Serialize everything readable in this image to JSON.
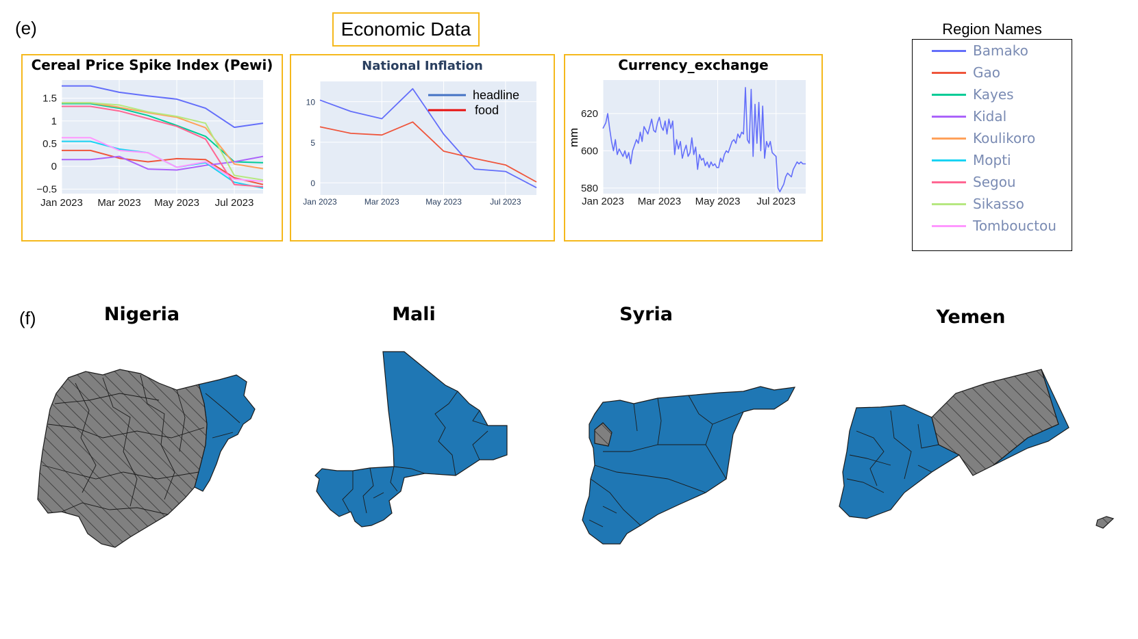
{
  "labels": {
    "e": "(e)",
    "f": "(f)"
  },
  "economic_title": "Economic Data",
  "colors": {
    "box_border": "#f5b81c",
    "plot_bg": "#e5ecf6",
    "map_blue": "#1f77b4",
    "map_grey": "#808080"
  },
  "chart_data": [
    {
      "type": "line",
      "title": "Cereal Price Spike Index (Pewi)",
      "xlabel": "",
      "ylabel": "",
      "x": [
        "2023-01",
        "2023-02",
        "2023-03",
        "2023-04",
        "2023-05",
        "2023-06",
        "2023-07",
        "2023-08"
      ],
      "x_ticks": [
        "Jan 2023",
        "Mar 2023",
        "May 2023",
        "Jul 2023"
      ],
      "y_ticks": [
        "−0.5",
        "0",
        "0.5",
        "1",
        "1.5"
      ],
      "ylim": [
        -0.6,
        1.9
      ],
      "series": [
        {
          "name": "Bamako",
          "color": "#636efa",
          "values": [
            1.77,
            1.77,
            1.63,
            1.55,
            1.48,
            1.28,
            0.86,
            0.95
          ]
        },
        {
          "name": "Gao",
          "color": "#ef553b",
          "values": [
            0.35,
            0.35,
            0.18,
            0.1,
            0.17,
            0.15,
            -0.25,
            -0.4
          ]
        },
        {
          "name": "Kayes",
          "color": "#00cc96",
          "values": [
            1.38,
            1.38,
            1.28,
            1.12,
            0.9,
            0.66,
            0.1,
            0.08
          ]
        },
        {
          "name": "Kidal",
          "color": "#ab63fa",
          "values": [
            0.15,
            0.15,
            0.22,
            -0.06,
            -0.08,
            0.02,
            0.1,
            0.22
          ]
        },
        {
          "name": "Koulikoro",
          "color": "#ffa15a",
          "values": [
            1.4,
            1.4,
            1.3,
            1.18,
            1.08,
            0.85,
            0.05,
            -0.05
          ]
        },
        {
          "name": "Mopti",
          "color": "#19d3f3",
          "values": [
            0.55,
            0.55,
            0.38,
            0.3,
            -0.02,
            0.08,
            -0.35,
            -0.48
          ]
        },
        {
          "name": "Segou",
          "color": "#ff6692",
          "values": [
            1.32,
            1.32,
            1.22,
            1.05,
            0.88,
            0.6,
            -0.4,
            -0.45
          ]
        },
        {
          "name": "Sikasso",
          "color": "#b6e880",
          "values": [
            1.4,
            1.4,
            1.35,
            1.2,
            1.1,
            0.95,
            -0.2,
            -0.3
          ]
        },
        {
          "name": "Tombouctou",
          "color": "#ff97ff",
          "values": [
            0.63,
            0.63,
            0.35,
            0.3,
            -0.02,
            0.1,
            -0.28,
            -0.33
          ]
        }
      ]
    },
    {
      "type": "line",
      "title": "National Inflation",
      "xlabel": "",
      "ylabel": "",
      "x": [
        "2023-01",
        "2023-02",
        "2023-03",
        "2023-04",
        "2023-05",
        "2023-06",
        "2023-07",
        "2023-08"
      ],
      "x_ticks": [
        "Jan 2023",
        "Mar 2023",
        "May 2023",
        "Jul 2023"
      ],
      "y_ticks": [
        "0",
        "5",
        "10"
      ],
      "ylim": [
        -1.5,
        12.5
      ],
      "legend_position": "top-right",
      "series": [
        {
          "name": "headline",
          "color": "#636efa",
          "values": [
            10.2,
            8.8,
            7.9,
            11.6,
            6.0,
            1.7,
            1.4,
            -0.6
          ]
        },
        {
          "name": "food",
          "color": "#ef553b",
          "values": [
            6.9,
            6.1,
            5.9,
            7.5,
            3.9,
            3.0,
            2.2,
            0.1
          ]
        }
      ],
      "legend_colors": {
        "headline": "#4472c4",
        "food": "#e8110f"
      }
    },
    {
      "type": "line",
      "title": "Currency_exchange",
      "xlabel": "",
      "ylabel": "mm",
      "x_ticks": [
        "Jan 2023",
        "Mar 2023",
        "May 2023",
        "Jul 2023"
      ],
      "y_ticks": [
        "580",
        "600",
        "620"
      ],
      "ylim": [
        577,
        638
      ],
      "x_range_days": [
        0,
        212
      ],
      "series": [
        {
          "name": "",
          "color": "#636efa",
          "x_days": [
            0,
            3,
            5,
            7,
            9,
            11,
            13,
            15,
            17,
            19,
            21,
            23,
            25,
            27,
            29,
            31,
            33,
            35,
            37,
            39,
            41,
            43,
            45,
            47,
            49,
            51,
            53,
            55,
            57,
            59,
            61,
            63,
            65,
            67,
            69,
            71,
            73,
            75,
            77,
            79,
            81,
            83,
            85,
            87,
            89,
            91,
            93,
            95,
            97,
            99,
            101,
            103,
            105,
            107,
            109,
            111,
            113,
            115,
            117,
            119,
            121,
            123,
            125,
            127,
            129,
            131,
            133,
            135,
            137,
            139,
            141,
            143,
            145,
            147,
            149,
            151,
            153,
            155,
            157,
            159,
            161,
            163,
            165,
            167,
            169,
            171,
            173,
            175,
            177,
            179,
            181,
            183,
            185,
            187,
            189,
            191,
            193,
            195,
            197,
            199,
            201,
            203,
            205,
            207,
            209,
            211,
            212
          ],
          "values": [
            612,
            615,
            620,
            612,
            605,
            600,
            606,
            598,
            601,
            599,
            597,
            600,
            596,
            599,
            593,
            600,
            603,
            606,
            604,
            610,
            605,
            613,
            611,
            609,
            613,
            617,
            611,
            610,
            615,
            618,
            613,
            611,
            616,
            609,
            617,
            612,
            616,
            598,
            606,
            601,
            605,
            596,
            600,
            603,
            597,
            599,
            607,
            598,
            602,
            590,
            598,
            595,
            596,
            592,
            594,
            591,
            594,
            592,
            593,
            591,
            591,
            596,
            594,
            598,
            600,
            599,
            602,
            605,
            606,
            604,
            609,
            607,
            610,
            609,
            634,
            606,
            604,
            633,
            597,
            625,
            604,
            626,
            600,
            624,
            596,
            605,
            602,
            605,
            599,
            598,
            597,
            580,
            578,
            580,
            582,
            586,
            588,
            587,
            586,
            590,
            592,
            594,
            593,
            594,
            593,
            593,
            593
          ]
        }
      ]
    }
  ],
  "legend": {
    "title": "Region Names",
    "items": [
      {
        "name": "Bamako",
        "color": "#636efa"
      },
      {
        "name": "Gao",
        "color": "#ef553b"
      },
      {
        "name": "Kayes",
        "color": "#00cc96"
      },
      {
        "name": "Kidal",
        "color": "#ab63fa"
      },
      {
        "name": "Koulikoro",
        "color": "#ffa15a"
      },
      {
        "name": "Mopti",
        "color": "#19d3f3"
      },
      {
        "name": "Segou",
        "color": "#ff6692"
      },
      {
        "name": "Sikasso",
        "color": "#b6e880"
      },
      {
        "name": "Tombouctou",
        "color": "#ff97ff"
      }
    ]
  },
  "maps": [
    {
      "name": "Nigeria"
    },
    {
      "name": "Mali"
    },
    {
      "name": "Syria"
    },
    {
      "name": "Yemen"
    }
  ]
}
